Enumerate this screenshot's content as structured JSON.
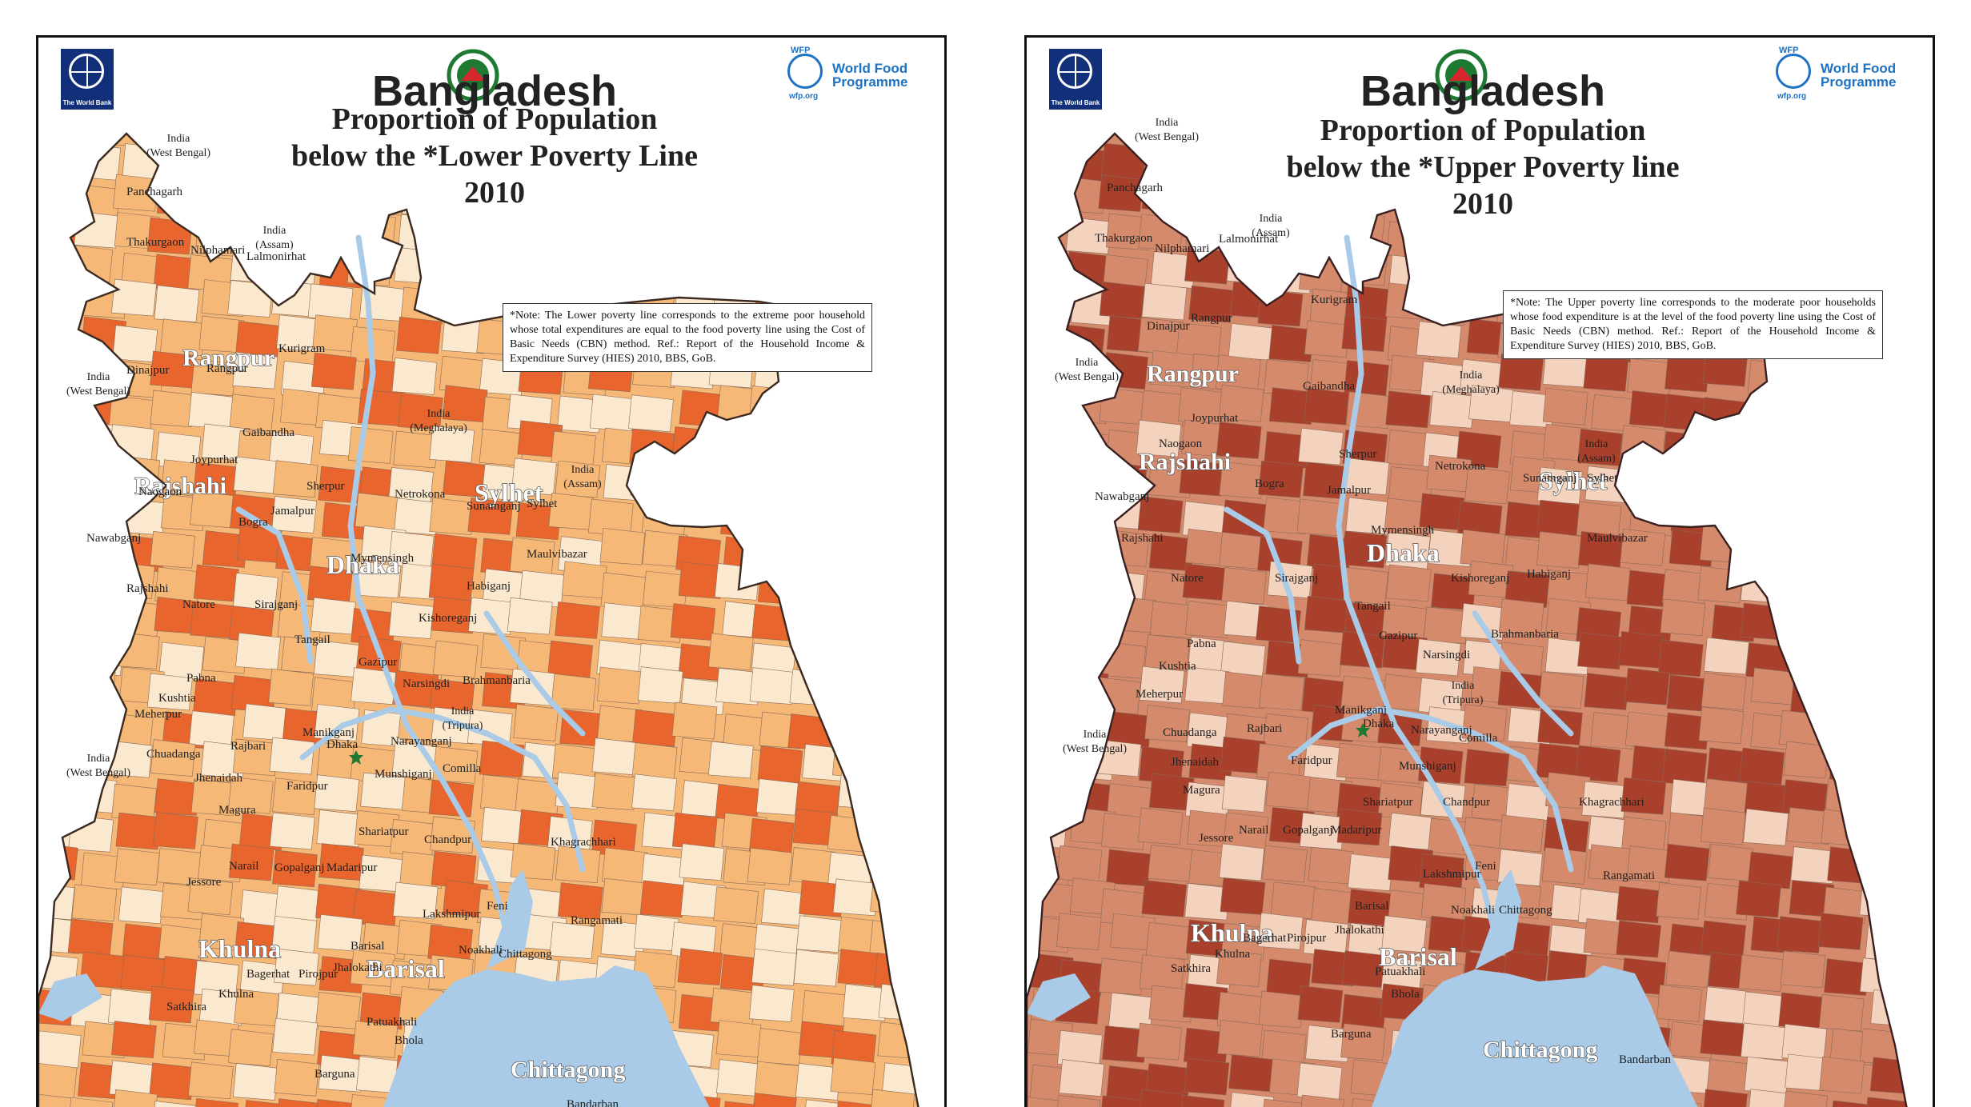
{
  "maps": [
    {
      "org_left": "The World Bank",
      "org_right": "World Food Programme",
      "org_right_tag": "WFP",
      "org_right_url": "wfp.org",
      "title_main": "Bangladesh",
      "title_line1": "Proportion of Population",
      "title_line2": "below  the *Lower Poverty Line",
      "title_line3": "2010",
      "note": "*Note: The Lower poverty line corresponds to the extreme poor household whose total expenditures are equal to the food poverty line using the Cost of Basic Needs (CBN) method. Ref.: Report of the Household Income & Expenditure Survey (HIES) 2010, BBS, GoB.",
      "colors": {
        "low": "#fbe9cf",
        "mid": "#f5b876",
        "high": "#e8652e",
        "water": "#a9cbe8",
        "border": "#3a2a20"
      }
    },
    {
      "org_left": "The World Bank",
      "org_right": "World Food Programme",
      "org_right_tag": "WFP",
      "org_right_url": "wfp.org",
      "title_main": "Bangladesh",
      "title_line1": "Proportion of Population",
      "title_line2": "below  the *Upper Poverty line",
      "title_line3": "2010",
      "note": "*Note: The Upper poverty line corresponds to the moderate poor households whose food expenditure is at the level of the food poverty line using the Cost of Basic Needs (CBN) method. Ref.: Report of the Household Income & Expenditure Survey (HIES) 2010, BBS, GoB.",
      "colors": {
        "low": "#f3d2be",
        "mid": "#d58a6c",
        "high": "#a8402c",
        "water": "#a9cbe8",
        "border": "#3a2020"
      }
    }
  ],
  "neighbors": {
    "india_wb": "India",
    "india_wb_sub": "(West Bengal)",
    "india_assam": "India",
    "india_assam_sub": "(Assam)",
    "india_meghalaya": "India",
    "india_meghalaya_sub": "(Meghalaya)",
    "india_tripura": "India",
    "india_tripura_sub": "(Tripura)"
  },
  "divisions": [
    "Rangpur",
    "Rajshahi",
    "Dhaka",
    "Sylhet",
    "Khulna",
    "Barisal",
    "Chittagong"
  ],
  "districts": [
    "Panchagarh",
    "Thakurgaon",
    "Nilphamari",
    "Lalmonirhat",
    "Kurigram",
    "Dinajpur",
    "Rangpur",
    "Gaibandha",
    "Joypurhat",
    "Naogaon",
    "Nawabganj",
    "Bogra",
    "Rajshahi",
    "Natore",
    "Sirajganj",
    "Pabna",
    "Kushtia",
    "Meherpur",
    "Chuadanga",
    "Jhenaidah",
    "Magura",
    "Rajbari",
    "Faridpur",
    "Manikganj",
    "Dhaka",
    "Narayanganj",
    "Munshiganj",
    "Gazipur",
    "Narsingdi",
    "Tangail",
    "Jamalpur",
    "Sherpur",
    "Mymensingh",
    "Netrokona",
    "Kishoreganj",
    "Sunamganj",
    "Sylhet",
    "Maulvibazar",
    "Habiganj",
    "Brahmanbaria",
    "Comilla",
    "Chandpur",
    "Shariatpur",
    "Madaripur",
    "Gopalganj",
    "Narail",
    "Jessore",
    "Khulna",
    "Satkhira",
    "Bagerhat",
    "Pirojpur",
    "Jhalokathi",
    "Barisal",
    "Patuakhali",
    "Barguna",
    "Bhola",
    "Lakshmipur",
    "Noakhali",
    "Feni",
    "Chittagong",
    "Khagrachhari",
    "Rangamati",
    "Bandarban"
  ]
}
